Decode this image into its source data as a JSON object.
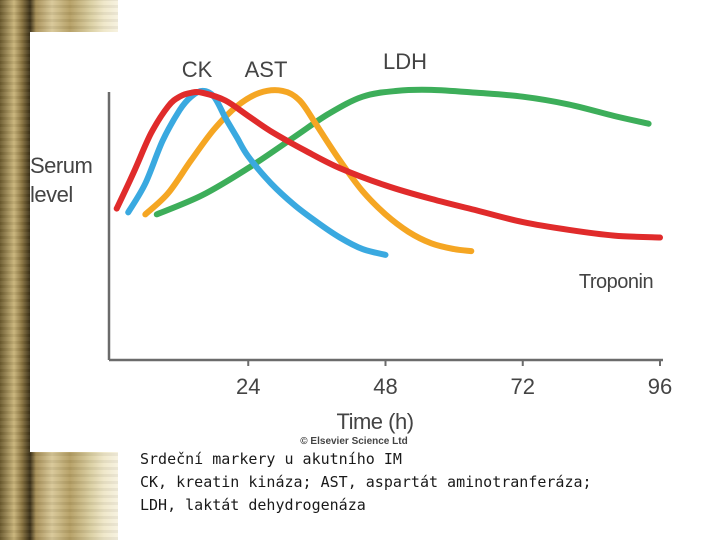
{
  "chart_data": {
    "type": "line",
    "ylabel": "Serum level",
    "ylabel_lines": [
      "Serum",
      "level"
    ],
    "xlabel": "Time (h)",
    "xticks": [
      24,
      48,
      72,
      96
    ],
    "xlim": [
      0,
      96
    ],
    "ylim": [
      0,
      100
    ],
    "copyright": "© Elsevier Science Ltd",
    "series": [
      {
        "name": "CK",
        "color": "#3aa9e0",
        "points": [
          [
            3,
            35
          ],
          [
            6,
            50
          ],
          [
            9,
            72
          ],
          [
            12,
            88
          ],
          [
            14,
            95
          ],
          [
            16,
            98
          ],
          [
            18,
            95
          ],
          [
            20,
            84
          ],
          [
            22,
            74
          ],
          [
            24,
            64
          ],
          [
            28,
            50
          ],
          [
            32,
            39
          ],
          [
            36,
            30
          ],
          [
            40,
            22
          ],
          [
            44,
            16
          ],
          [
            48,
            13
          ]
        ]
      },
      {
        "name": "AST",
        "color": "#f5a623",
        "points": [
          [
            6,
            34
          ],
          [
            10,
            45
          ],
          [
            14,
            62
          ],
          [
            18,
            78
          ],
          [
            22,
            90
          ],
          [
            26,
            97
          ],
          [
            30,
            98
          ],
          [
            33,
            93
          ],
          [
            36,
            80
          ],
          [
            40,
            62
          ],
          [
            44,
            46
          ],
          [
            48,
            34
          ],
          [
            52,
            25
          ],
          [
            56,
            19
          ],
          [
            60,
            16
          ],
          [
            63,
            15
          ]
        ]
      },
      {
        "name": "LDH",
        "color": "#3dae5a",
        "points": [
          [
            8,
            34
          ],
          [
            16,
            44
          ],
          [
            24,
            58
          ],
          [
            32,
            74
          ],
          [
            38,
            86
          ],
          [
            44,
            95
          ],
          [
            50,
            98
          ],
          [
            56,
            98.5
          ],
          [
            64,
            97
          ],
          [
            72,
            95
          ],
          [
            80,
            91
          ],
          [
            88,
            85
          ],
          [
            94,
            81
          ]
        ]
      },
      {
        "name": "Troponin",
        "color": "#e02b2b",
        "points": [
          [
            1,
            37
          ],
          [
            4,
            56
          ],
          [
            7,
            76
          ],
          [
            10,
            90
          ],
          [
            12,
            95
          ],
          [
            14,
            97
          ],
          [
            16,
            97
          ],
          [
            20,
            93
          ],
          [
            24,
            85
          ],
          [
            28,
            77
          ],
          [
            34,
            67
          ],
          [
            40,
            58
          ],
          [
            48,
            49
          ],
          [
            56,
            42
          ],
          [
            64,
            36
          ],
          [
            72,
            30
          ],
          [
            80,
            26
          ],
          [
            88,
            23
          ],
          [
            96,
            22
          ]
        ]
      }
    ]
  },
  "caption": {
    "line1": "Srdeční markery u akutního IM",
    "line2": "CK, kreatin kináza; AST, aspartát aminotranferáza;",
    "line3": "LDH, laktát dehydrogenáza"
  }
}
